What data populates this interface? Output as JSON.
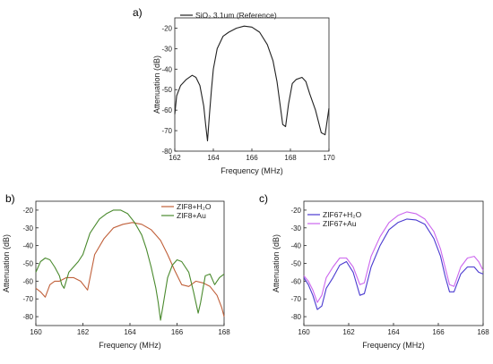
{
  "chart_data": [
    {
      "panel_label": "a)",
      "type": "line",
      "xlabel": "Frequency (MHz)",
      "ylabel": "Attenuation (dB)",
      "xlim": [
        162,
        170
      ],
      "ylim": [
        -80,
        -15
      ],
      "xticks": [
        162,
        164,
        166,
        168,
        170
      ],
      "yticks": [
        -20,
        -30,
        -40,
        -50,
        -60,
        -70,
        -80
      ],
      "legend_position": "top-left",
      "series": [
        {
          "name": "SiO₂ 3.1um (Reference)",
          "color": "#222222",
          "x": [
            162.0,
            162.1,
            162.3,
            162.6,
            162.9,
            163.1,
            163.3,
            163.5,
            163.6,
            163.7,
            163.8,
            163.9,
            164.0,
            164.2,
            164.5,
            164.8,
            165.2,
            165.6,
            166.0,
            166.4,
            166.8,
            167.1,
            167.3,
            167.5,
            167.6,
            167.75,
            167.9,
            168.1,
            168.3,
            168.6,
            168.8,
            169.0,
            169.3,
            169.6,
            169.8,
            170.0
          ],
          "y": [
            -62,
            -53,
            -48,
            -45,
            -43,
            -44,
            -48,
            -58,
            -67,
            -75,
            -62,
            -50,
            -40,
            -30,
            -24,
            -22,
            -20,
            -19,
            -19.5,
            -22,
            -28,
            -36,
            -46,
            -60,
            -67,
            -68,
            -57,
            -47,
            -45,
            -44,
            -46,
            -52,
            -60,
            -71,
            -72,
            -59
          ]
        }
      ]
    },
    {
      "panel_label": "b)",
      "type": "line",
      "xlabel": "Frequency (MHz)",
      "ylabel": "Attenuation",
      "ylabel_suffix": "(dB)",
      "xlim": [
        160,
        168
      ],
      "ylim": [
        -85,
        -15
      ],
      "xticks": [
        160,
        162,
        164,
        166,
        168
      ],
      "yticks": [
        -20,
        -30,
        -40,
        -50,
        -60,
        -70,
        -80
      ],
      "legend_position": "top-right",
      "series": [
        {
          "name": "ZIF8+H₂O",
          "color": "#c0603a",
          "x": [
            160.0,
            160.2,
            160.4,
            160.6,
            160.8,
            161.0,
            161.3,
            161.6,
            161.9,
            162.2,
            162.5,
            162.9,
            163.3,
            163.7,
            164.1,
            164.5,
            164.9,
            165.3,
            165.6,
            165.9,
            166.2,
            166.5,
            166.8,
            167.1,
            167.4,
            167.7,
            167.9,
            168.0
          ],
          "y": [
            -64,
            -66,
            -69,
            -62,
            -60,
            -60,
            -58,
            -58,
            -60,
            -65,
            -45,
            -36,
            -30,
            -28,
            -27,
            -28,
            -31,
            -37,
            -45,
            -54,
            -62,
            -63,
            -60,
            -61,
            -63,
            -68,
            -75,
            -80
          ]
        },
        {
          "name": "ZIF8+Au",
          "color": "#4a8a2e",
          "x": [
            160.0,
            160.2,
            160.4,
            160.6,
            160.8,
            161.0,
            161.1,
            161.2,
            161.4,
            161.6,
            161.8,
            162.0,
            162.3,
            162.7,
            163.0,
            163.3,
            163.6,
            163.9,
            164.2,
            164.5,
            164.7,
            164.9,
            165.1,
            165.2,
            165.3,
            165.4,
            165.6,
            165.8,
            166.0,
            166.2,
            166.5,
            166.7,
            166.9,
            167.0,
            167.2,
            167.4,
            167.6,
            167.8,
            168.0
          ],
          "y": [
            -55,
            -49,
            -47,
            -48,
            -52,
            -57,
            -62,
            -64,
            -55,
            -52,
            -49,
            -45,
            -33,
            -25,
            -22,
            -20,
            -20,
            -22,
            -27,
            -34,
            -42,
            -52,
            -64,
            -72,
            -82,
            -74,
            -58,
            -51,
            -48,
            -49,
            -55,
            -66,
            -78,
            -72,
            -57,
            -56,
            -62,
            -58,
            -56
          ]
        }
      ]
    },
    {
      "panel_label": "c)",
      "type": "line",
      "xlabel": "Frequency (MHz)",
      "ylabel": "Attenuation",
      "ylabel_suffix": "(dB)",
      "xlim": [
        160,
        168
      ],
      "ylim": [
        -85,
        -15
      ],
      "xticks": [
        160,
        162,
        164,
        166,
        168
      ],
      "yticks": [
        -20,
        -30,
        -40,
        -50,
        -60,
        -70,
        -80
      ],
      "legend_position": "top-left",
      "series": [
        {
          "name": "ZIF67+H₂O",
          "color": "#4a3ad0",
          "x": [
            160.0,
            160.2,
            160.4,
            160.6,
            160.8,
            161.0,
            161.3,
            161.6,
            161.9,
            162.2,
            162.5,
            162.7,
            163.0,
            163.4,
            163.8,
            164.2,
            164.6,
            165.0,
            165.4,
            165.8,
            166.1,
            166.3,
            166.5,
            166.7,
            167.0,
            167.3,
            167.6,
            167.8,
            168.0
          ],
          "y": [
            -58,
            -62,
            -68,
            -76,
            -74,
            -64,
            -58,
            -51,
            -49,
            -55,
            -68,
            -67,
            -52,
            -40,
            -31,
            -27,
            -25,
            -25.5,
            -28,
            -36,
            -46,
            -57,
            -66,
            -66,
            -56,
            -52,
            -52,
            -55,
            -56
          ]
        },
        {
          "name": "ZIF67+Au",
          "color": "#cc66ee",
          "x": [
            160.0,
            160.2,
            160.4,
            160.6,
            160.8,
            161.0,
            161.3,
            161.6,
            161.9,
            162.2,
            162.5,
            162.7,
            163.0,
            163.4,
            163.8,
            164.2,
            164.6,
            165.0,
            165.4,
            165.8,
            166.1,
            166.3,
            166.5,
            166.7,
            167.0,
            167.3,
            167.6,
            167.8,
            168.0
          ],
          "y": [
            -57,
            -60,
            -65,
            -72,
            -68,
            -58,
            -52,
            -47,
            -47,
            -52,
            -62,
            -61,
            -46,
            -35,
            -27,
            -23,
            -21,
            -22,
            -25,
            -32,
            -42,
            -52,
            -62,
            -63,
            -52,
            -47,
            -46,
            -49,
            -54
          ]
        }
      ]
    }
  ]
}
